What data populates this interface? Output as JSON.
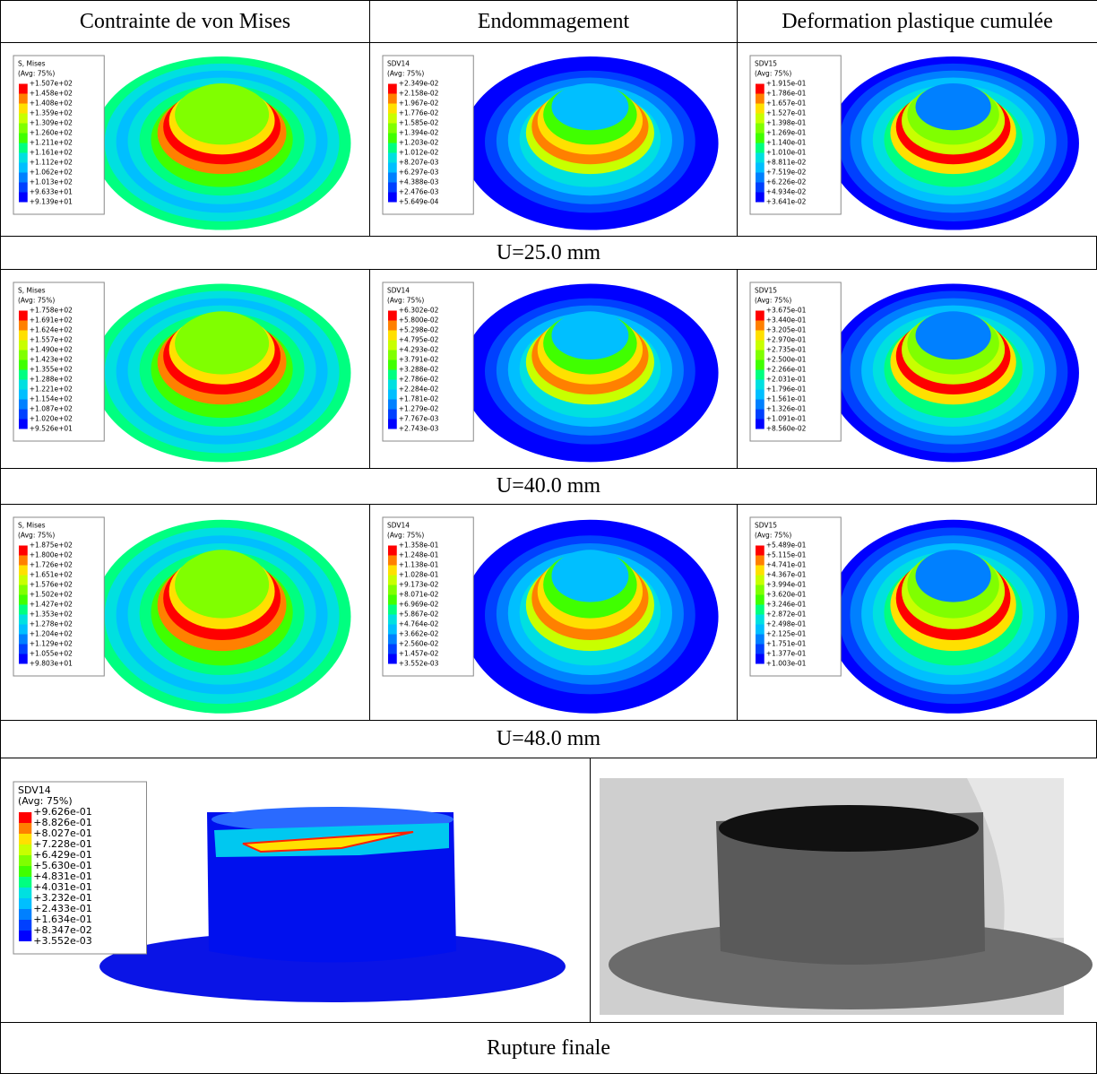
{
  "header": [
    "Contrainte de von Mises",
    "Endommagement",
    "Deformation plastique cumulée"
  ],
  "rows": [
    {
      "panels": [
        {
          "variable": "S, Mises",
          "averaging": "(Avg: 75%)",
          "levels": [
            "+1.507e+02",
            "+1.458e+02",
            "+1.408e+02",
            "+1.359e+02",
            "+1.309e+02",
            "+1.260e+02",
            "+1.211e+02",
            "+1.161e+02",
            "+1.112e+02",
            "+1.062e+02",
            "+1.013e+02",
            "+9.633e+01",
            "+9.139e+01"
          ]
        },
        {
          "variable": "SDV14",
          "averaging": "(Avg: 75%)",
          "levels": [
            "+2.349e-02",
            "+2.158e-02",
            "+1.967e-02",
            "+1.776e-02",
            "+1.585e-02",
            "+1.394e-02",
            "+1.203e-02",
            "+1.012e-02",
            "+8.207e-03",
            "+6.297e-03",
            "+4.388e-03",
            "+2.476e-03",
            "+5.649e-04"
          ]
        },
        {
          "variable": "SDV15",
          "averaging": "(Avg: 75%)",
          "levels": [
            "+1.915e-01",
            "+1.786e-01",
            "+1.657e-01",
            "+1.527e-01",
            "+1.398e-01",
            "+1.269e-01",
            "+1.140e-01",
            "+1.010e-01",
            "+8.811e-02",
            "+7.519e-02",
            "+6.226e-02",
            "+4.934e-02",
            "+3.641e-02"
          ]
        }
      ],
      "caption": "U=25.0 mm"
    },
    {
      "panels": [
        {
          "variable": "S, Mises",
          "averaging": "(Avg: 75%)",
          "levels": [
            "+1.758e+02",
            "+1.691e+02",
            "+1.624e+02",
            "+1.557e+02",
            "+1.490e+02",
            "+1.423e+02",
            "+1.355e+02",
            "+1.288e+02",
            "+1.221e+02",
            "+1.154e+02",
            "+1.087e+02",
            "+1.020e+02",
            "+9.526e+01"
          ]
        },
        {
          "variable": "SDV14",
          "averaging": "(Avg: 75%)",
          "levels": [
            "+6.302e-02",
            "+5.800e-02",
            "+5.298e-02",
            "+4.795e-02",
            "+4.293e-02",
            "+3.791e-02",
            "+3.288e-02",
            "+2.786e-02",
            "+2.284e-02",
            "+1.781e-02",
            "+1.279e-02",
            "+7.767e-03",
            "+2.743e-03"
          ]
        },
        {
          "variable": "SDV15",
          "averaging": "(Avg: 75%)",
          "levels": [
            "+3.675e-01",
            "+3.440e-01",
            "+3.205e-01",
            "+2.970e-01",
            "+2.735e-01",
            "+2.500e-01",
            "+2.266e-01",
            "+2.031e-01",
            "+1.796e-01",
            "+1.561e-01",
            "+1.326e-01",
            "+1.091e-01",
            "+8.560e-02"
          ]
        }
      ],
      "caption": "U=40.0 mm"
    },
    {
      "panels": [
        {
          "variable": "S, Mises",
          "averaging": "(Avg: 75%)",
          "levels": [
            "+1.875e+02",
            "+1.800e+02",
            "+1.726e+02",
            "+1.651e+02",
            "+1.576e+02",
            "+1.502e+02",
            "+1.427e+02",
            "+1.353e+02",
            "+1.278e+02",
            "+1.204e+02",
            "+1.129e+02",
            "+1.055e+02",
            "+9.803e+01"
          ]
        },
        {
          "variable": "SDV14",
          "averaging": "(Avg: 75%)",
          "levels": [
            "+1.358e-01",
            "+1.248e-01",
            "+1.138e-01",
            "+1.028e-01",
            "+9.173e-02",
            "+8.071e-02",
            "+6.969e-02",
            "+5.867e-02",
            "+4.764e-02",
            "+3.662e-02",
            "+2.560e-02",
            "+1.457e-02",
            "+3.552e-03"
          ]
        },
        {
          "variable": "SDV15",
          "averaging": "(Avg: 75%)",
          "levels": [
            "+5.489e-01",
            "+5.115e-01",
            "+4.741e-01",
            "+4.367e-01",
            "+3.994e-01",
            "+3.620e-01",
            "+3.246e-01",
            "+2.872e-01",
            "+2.498e-01",
            "+2.125e-01",
            "+1.751e-01",
            "+1.377e-01",
            "+1.003e-01"
          ]
        }
      ],
      "caption": "U=48.0 mm"
    }
  ],
  "final": {
    "panel": {
      "variable": "SDV14",
      "averaging": "(Avg: 75%)",
      "levels": [
        "+9.626e-01",
        "+8.826e-01",
        "+8.027e-01",
        "+7.228e-01",
        "+6.429e-01",
        "+5.630e-01",
        "+4.831e-01",
        "+4.031e-01",
        "+3.232e-01",
        "+2.433e-01",
        "+1.634e-01",
        "+8.347e-02",
        "+3.552e-03"
      ]
    },
    "caption": "Rupture finale"
  }
}
